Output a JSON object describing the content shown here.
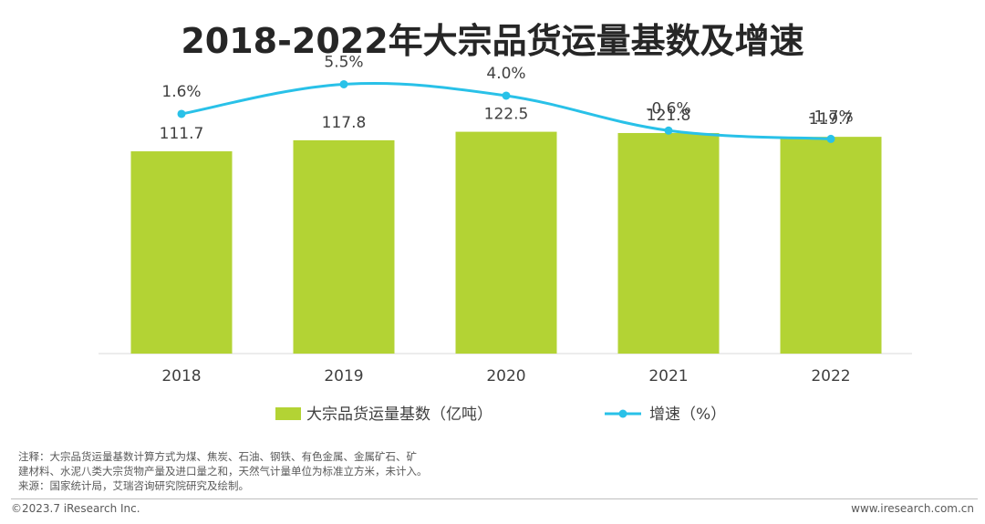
{
  "chart_data": {
    "type": "bar",
    "title": "2018-2022年大宗品货运量基数及增速",
    "categories": [
      "2018",
      "2019",
      "2020",
      "2021",
      "2022"
    ],
    "series": [
      {
        "name": "大宗品货运量基数（亿吨）",
        "type": "bar",
        "values": [
          111.7,
          117.8,
          122.5,
          121.8,
          119.7
        ],
        "labels": [
          "111.7",
          "117.8",
          "122.5",
          "121.8",
          "119.7"
        ],
        "color": "#b3d334"
      },
      {
        "name": "增速（%）",
        "type": "line",
        "values": [
          1.6,
          5.5,
          4.0,
          -0.6,
          -1.7
        ],
        "labels": [
          "1.6%",
          "5.5%",
          "4.0%",
          "-0.6%",
          "-1.7%"
        ],
        "color": "#29c1e8"
      }
    ],
    "bar_axis_range": [
      0,
      155
    ],
    "line_axis_range": [
      -30,
      7
    ]
  },
  "notes": {
    "line1": "注释：大宗品货运量基数计算方式为煤、焦炭、石油、钢铁、有色金属、金属矿石、矿",
    "line2": "建材料、水泥八类大宗货物产量及进口量之和，天然气计量单位为标准立方米，未计入。",
    "line3": "来源：国家统计局，艾瑞咨询研究院研究及绘制。"
  },
  "footer": {
    "copyright": "©2023.7 iResearch Inc.",
    "website": "www.iresearch.com.cn"
  }
}
